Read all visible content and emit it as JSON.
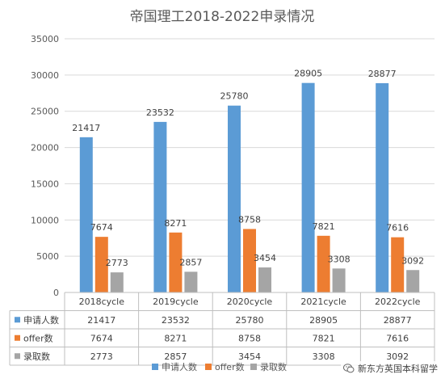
{
  "chart_data": {
    "type": "bar",
    "title": "帝国理工2018-2022申录情况",
    "categories": [
      "2018cycle",
      "2019cycle",
      "2020cycle",
      "2021cycle",
      "2022cycle"
    ],
    "series": [
      {
        "name": "申请人数",
        "color": "#5b9bd5",
        "values": [
          21417,
          23532,
          25780,
          28905,
          28877
        ]
      },
      {
        "name": "offer数",
        "color": "#ed7d31",
        "values": [
          7674,
          8271,
          8758,
          7821,
          7616
        ]
      },
      {
        "name": "录取数",
        "color": "#a5a5a5",
        "values": [
          2773,
          2857,
          3454,
          3308,
          3092
        ]
      }
    ],
    "ylim": [
      0,
      35000
    ],
    "yticks": [
      0,
      5000,
      10000,
      15000,
      20000,
      25000,
      30000,
      35000
    ],
    "grid": true,
    "legend_position": "bottom",
    "data_table": true
  },
  "watermark": {
    "text": "新东方英国本科留学",
    "icon": "wechat-icon"
  }
}
